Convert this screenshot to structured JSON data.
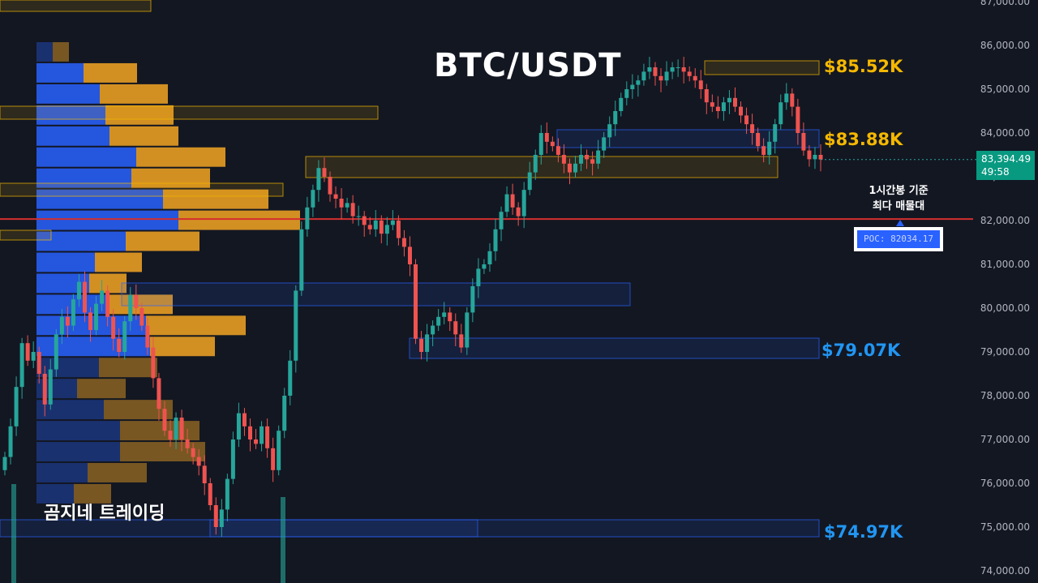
{
  "title": "BTC/USDT",
  "watermark": "곰지네 트레이딩",
  "levels": [
    {
      "label": "$85.52K",
      "price": 85520,
      "color": "#f5b800"
    },
    {
      "label": "$83.88K",
      "price": 83880,
      "color": "#f5b800"
    },
    {
      "label": "$79.07K",
      "price": 79070,
      "color": "#2196f3"
    },
    {
      "label": "$74.97K",
      "price": 74970,
      "color": "#2196f3"
    }
  ],
  "annotation": {
    "line1": "1시간봉 기준",
    "line2": "최다 매물대"
  },
  "poc": {
    "label": "POC: 82034.17",
    "price": 82034.17
  },
  "current": {
    "price": "83,394.49",
    "countdown": "49:58",
    "value": 83394.49
  },
  "colors": {
    "up": "#26a69a",
    "down": "#ef5350",
    "poc_line": "#d32f2f",
    "vp_buy": "#2962ff",
    "vp_sell": "#f5a623"
  },
  "chart_data": {
    "type": "candlestick",
    "title": "BTC/USDT",
    "interval": "1시간봉",
    "ylim": [
      73800,
      87000
    ],
    "y_ticks": [
      "74,000.00",
      "75,000.00",
      "76,000.00",
      "77,000.00",
      "78,000.00",
      "79,000.00",
      "80,000.00",
      "81,000.00",
      "82,000.00",
      "83,000.00",
      "84,000.00",
      "85,000.00",
      "86,000.00",
      "87,000.00"
    ],
    "closes": [
      76600,
      77300,
      78200,
      79200,
      78800,
      79000,
      78500,
      77800,
      78600,
      79400,
      79800,
      79600,
      80200,
      80600,
      79900,
      79500,
      80100,
      80400,
      79800,
      79300,
      79000,
      79700,
      80300,
      80000,
      79600,
      79100,
      78400,
      77700,
      77200,
      77000,
      77500,
      77000,
      76800,
      76600,
      76400,
      76000,
      75500,
      75000,
      75400,
      76100,
      77000,
      77600,
      77300,
      77000,
      76900,
      77300,
      76800,
      76300,
      77200,
      78000,
      78800,
      80400,
      81800,
      82300,
      82700,
      83200,
      83000,
      82600,
      82500,
      82300,
      82400,
      82100,
      82100,
      81900,
      81800,
      82000,
      81700,
      81900,
      82000,
      81600,
      81400,
      81000,
      79300,
      79000,
      79400,
      79600,
      79800,
      79900,
      79700,
      79400,
      79100,
      79900,
      80500,
      80900,
      81000,
      81300,
      81800,
      82200,
      82600,
      82300,
      82100,
      82700,
      83100,
      83500,
      84000,
      83800,
      83700,
      83500,
      83300,
      83100,
      83300,
      83500,
      83400,
      83300,
      83600,
      83900,
      84200,
      84500,
      84800,
      85000,
      85100,
      85200,
      85400,
      85500,
      85300,
      85200,
      85400,
      85500,
      85500,
      85400,
      85300,
      85200,
      85000,
      84700,
      84600,
      84500,
      84700,
      84800,
      84600,
      84400,
      84200,
      84000,
      83700,
      83500,
      83800,
      84200,
      84700,
      84900,
      84600,
      84000,
      83600,
      83400,
      83500,
      83394
    ]
  },
  "volume_profile": [
    {
      "buy": 20,
      "sell": 20
    },
    {
      "buy": 58,
      "sell": 66
    },
    {
      "buy": 78,
      "sell": 84
    },
    {
      "buy": 85,
      "sell": 84
    },
    {
      "buy": 90,
      "sell": 85
    },
    {
      "buy": 123,
      "sell": 110
    },
    {
      "buy": 117,
      "sell": 97
    },
    {
      "buy": 156,
      "sell": 130
    },
    {
      "buy": 175,
      "sell": 150
    },
    {
      "buy": 110,
      "sell": 91
    },
    {
      "buy": 72,
      "sell": 58
    },
    {
      "buy": 65,
      "sell": 46
    },
    {
      "buy": 90,
      "sell": 78
    },
    {
      "buy": 135,
      "sell": 123
    },
    {
      "buy": 140,
      "sell": 80
    },
    {
      "buy": 77,
      "sell": 72
    },
    {
      "buy": 50,
      "sell": 60
    },
    {
      "buy": 83,
      "sell": 85
    },
    {
      "buy": 103,
      "sell": 98
    },
    {
      "buy": 103,
      "sell": 105
    },
    {
      "buy": 63,
      "sell": 73
    },
    {
      "buy": 46,
      "sell": 46
    }
  ]
}
